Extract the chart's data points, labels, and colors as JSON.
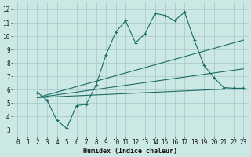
{
  "xlabel": "Humidex (Indice chaleur)",
  "background_color": "#cce8e4",
  "grid_color": "#aacccc",
  "line_color": "#1a6b68",
  "xlim": [
    -0.5,
    23.5
  ],
  "ylim": [
    2.5,
    12.5
  ],
  "xticks": [
    0,
    1,
    2,
    3,
    4,
    5,
    6,
    7,
    8,
    9,
    10,
    11,
    12,
    13,
    14,
    15,
    16,
    17,
    18,
    19,
    20,
    21,
    22,
    23
  ],
  "yticks": [
    3,
    4,
    5,
    6,
    7,
    8,
    9,
    10,
    11,
    12
  ],
  "series1_x": [
    2,
    3,
    4,
    5,
    6,
    7,
    8,
    9,
    10,
    11,
    12,
    13,
    14,
    15,
    16,
    17,
    18,
    19,
    20,
    21,
    22,
    23
  ],
  "series1_y": [
    5.8,
    5.2,
    3.7,
    3.1,
    4.8,
    4.9,
    6.35,
    8.6,
    10.3,
    11.15,
    9.5,
    10.2,
    11.7,
    11.55,
    11.15,
    11.8,
    9.7,
    7.8,
    6.9,
    6.15,
    6.1,
    6.1
  ],
  "series2_x": [
    2,
    23
  ],
  "series2_y": [
    5.4,
    9.7
  ],
  "series3_x": [
    2,
    23
  ],
  "series3_y": [
    5.4,
    6.1
  ],
  "series4_x": [
    2,
    23
  ],
  "series4_y": [
    5.4,
    7.55
  ]
}
